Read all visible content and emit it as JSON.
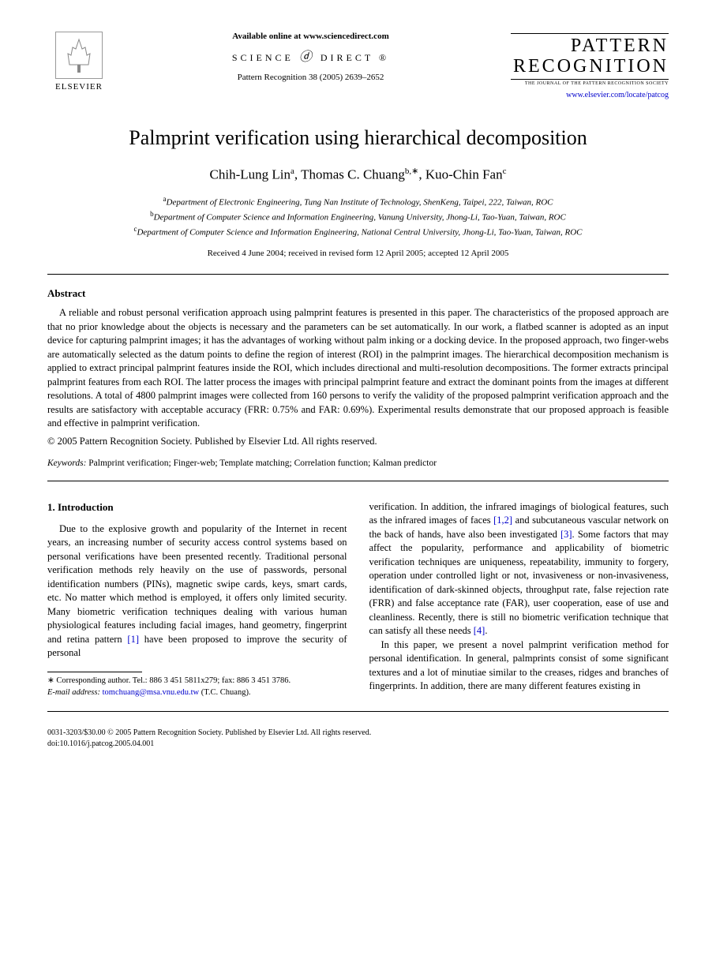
{
  "header": {
    "publisher": "ELSEVIER",
    "available_online": "Available online at www.sciencedirect.com",
    "science_direct": "SCIENCE",
    "science_direct2": "DIRECT",
    "journal_ref": "Pattern Recognition 38 (2005) 2639–2652",
    "journal_title_line1": "PATTERN",
    "journal_title_line2": "RECOGNITION",
    "journal_subtitle": "THE JOURNAL OF THE PATTERN RECOGNITION SOCIETY",
    "journal_url": "www.elsevier.com/locate/patcog"
  },
  "paper": {
    "title": "Palmprint verification using hierarchical decomposition",
    "authors_html": "Chih-Lung Lin<sup>a</sup>, Thomas C. Chuang<sup>b,∗</sup>, Kuo-Chin Fan<sup>c</sup>",
    "affiliations": [
      {
        "sup": "a",
        "text": "Department of Electronic Engineering, Tung Nan Institute of Technology, ShenKeng, Taipei, 222, Taiwan, ROC"
      },
      {
        "sup": "b",
        "text": "Department of Computer Science and Information Engineering, Vanung University, Jhong-Li, Tao-Yuan, Taiwan, ROC"
      },
      {
        "sup": "c",
        "text": "Department of Computer Science and Information Engineering, National Central University, Jhong-Li, Tao-Yuan, Taiwan, ROC"
      }
    ],
    "dates": "Received 4 June 2004; received in revised form 12 April 2005; accepted 12 April 2005"
  },
  "abstract": {
    "heading": "Abstract",
    "body": "A reliable and robust personal verification approach using palmprint features is presented in this paper. The characteristics of the proposed approach are that no prior knowledge about the objects is necessary and the parameters can be set automatically. In our work, a flatbed scanner is adopted as an input device for capturing palmprint images; it has the advantages of working without palm inking or a docking device. In the proposed approach, two finger-webs are automatically selected as the datum points to define the region of interest (ROI) in the palmprint images. The hierarchical decomposition mechanism is applied to extract principal palmprint features inside the ROI, which includes directional and multi-resolution decompositions. The former extracts principal palmprint features from each ROI. The latter process the images with principal palmprint feature and extract the dominant points from the images at different resolutions. A total of 4800 palmprint images were collected from 160 persons to verify the validity of the proposed palmprint verification approach and the results are satisfactory with acceptable accuracy (FRR: 0.75% and FAR: 0.69%). Experimental results demonstrate that our proposed approach is feasible and effective in palmprint verification.",
    "copyright": "© 2005 Pattern Recognition Society. Published by Elsevier Ltd. All rights reserved."
  },
  "keywords": {
    "label": "Keywords:",
    "text": " Palmprint verification; Finger-web; Template matching; Correlation function; Kalman predictor"
  },
  "intro": {
    "heading": "1. Introduction",
    "col1_para": "Due to the explosive growth and popularity of the Internet in recent years, an increasing number of security access control systems based on personal verifications have been presented recently. Traditional personal verification methods rely heavily on the use of passwords, personal identification numbers (PINs), magnetic swipe cards, keys, smart cards, etc. No matter which method is employed, it offers only limited security. Many biometric verification techniques dealing with various human physiological features including facial images, hand geometry, fingerprint and retina pattern ",
    "col1_ref1": "[1]",
    "col1_tail": " have been proposed to improve the security of personal",
    "col2_para1_pre": "verification. In addition, the infrared imagings of biological features, such as the infrared images of faces ",
    "col2_ref12": "[1,2]",
    "col2_para1_mid": " and subcutaneous vascular network on the back of hands, have also been investigated ",
    "col2_ref3": "[3]",
    "col2_para1_post": ". Some factors that may affect the popularity, performance and applicability of biometric verification techniques are uniqueness, repeatability, immunity to forgery, operation under controlled light or not, invasiveness or non-invasiveness, identification of dark-skinned objects, throughput rate, false rejection rate (FRR) and false acceptance rate (FAR), user cooperation, ease of use and cleanliness. Recently, there is still no biometric verification technique that can satisfy all these needs ",
    "col2_ref4": "[4]",
    "col2_para1_end": ".",
    "col2_para2": "In this paper, we present a novel palmprint verification method for personal identification. In general, palmprints consist of some significant textures and a lot of minutiae similar to the creases, ridges and branches of fingerprints. In addition, there are many different features existing in"
  },
  "footnote": {
    "corresponding": "∗ Corresponding author. Tel.: 886 3 451 5811x279; fax: 886 3 451 3786.",
    "email_label": "E-mail address:",
    "email": "tomchuang@msa.vnu.edu.tw",
    "email_tail": " (T.C. Chuang)."
  },
  "footer": {
    "line1": "0031-3203/$30.00 © 2005 Pattern Recognition Society. Published by Elsevier Ltd. All rights reserved.",
    "line2": "doi:10.1016/j.patcog.2005.04.001"
  },
  "colors": {
    "text": "#000000",
    "link": "#0000cc",
    "background": "#ffffff"
  }
}
